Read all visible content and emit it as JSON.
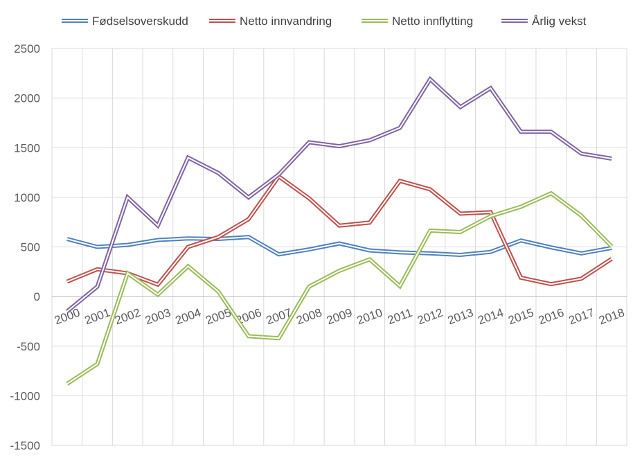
{
  "chart_data": {
    "type": "line",
    "title": "",
    "xlabel": "",
    "ylabel": "",
    "categories": [
      "2000",
      "2001",
      "2002",
      "2003",
      "2004",
      "2005",
      "2006",
      "2007",
      "2008",
      "2009",
      "2010",
      "2011",
      "2012",
      "2013",
      "2014",
      "2015",
      "2016",
      "2017",
      "2018"
    ],
    "ylim": [
      -1500,
      2500
    ],
    "yticks": [
      2500,
      2000,
      1500,
      1000,
      500,
      0,
      -500,
      -1000,
      -1500
    ],
    "grid": true,
    "legend_position": "top",
    "series": [
      {
        "name": "Fødselsoverskudd",
        "color": "#4F81BD",
        "values": [
          580,
          500,
          520,
          570,
          585,
          580,
          600,
          425,
          475,
          535,
          465,
          445,
          435,
          420,
          450,
          565,
          495,
          435,
          490
        ]
      },
      {
        "name": "Netto innvandring",
        "color": "#C0504D",
        "values": [
          150,
          275,
          235,
          120,
          500,
          600,
          780,
          1210,
          990,
          715,
          745,
          1165,
          1080,
          835,
          850,
          190,
          125,
          180,
          380
        ]
      },
      {
        "name": "Netto innflytting",
        "color": "#9BBB59",
        "values": [
          -880,
          -680,
          235,
          20,
          305,
          50,
          -400,
          -420,
          100,
          260,
          375,
          105,
          665,
          650,
          810,
          905,
          1040,
          815,
          505
        ]
      },
      {
        "name": "Årlig vekst",
        "color": "#8064A2",
        "values": [
          -150,
          100,
          1000,
          715,
          1400,
          1245,
          1000,
          1230,
          1555,
          1515,
          1575,
          1700,
          2190,
          1910,
          2100,
          1660,
          1660,
          1440,
          1390
        ]
      }
    ]
  }
}
